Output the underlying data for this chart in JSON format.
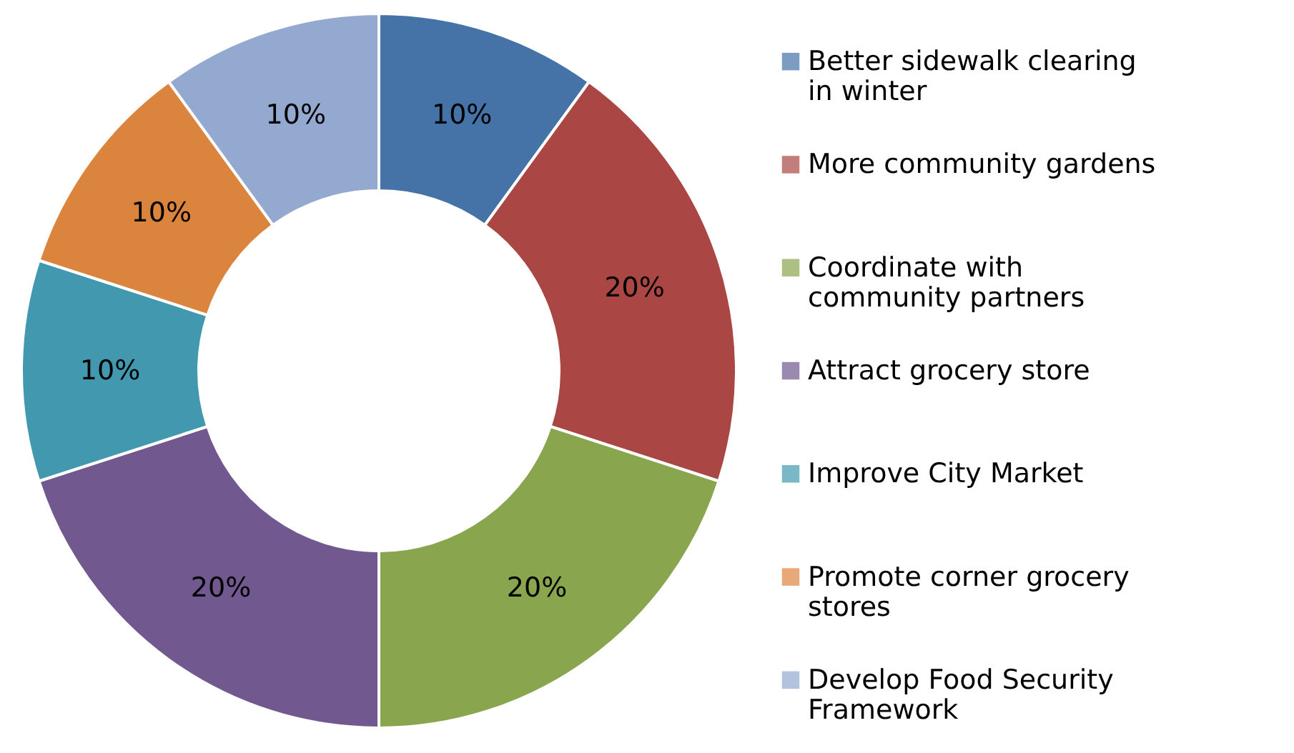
{
  "chart_data": {
    "type": "donut",
    "categories": [
      "Better sidewalk clearing in winter",
      "More community gardens",
      "Coordinate with community partners",
      "Attract grocery store",
      "Improve City Market",
      "Promote corner grocery stores",
      "Develop Food Security Framework"
    ],
    "values": [
      10,
      20,
      20,
      20,
      10,
      10,
      10
    ],
    "colors": [
      "#4572a7",
      "#aa4643",
      "#89a54e",
      "#71588f",
      "#4198af",
      "#db843d",
      "#93a9cf"
    ],
    "value_labels": [
      "10%",
      "20%",
      "20%",
      "20%",
      "10%",
      "10%",
      "10%"
    ],
    "legend": "right"
  }
}
